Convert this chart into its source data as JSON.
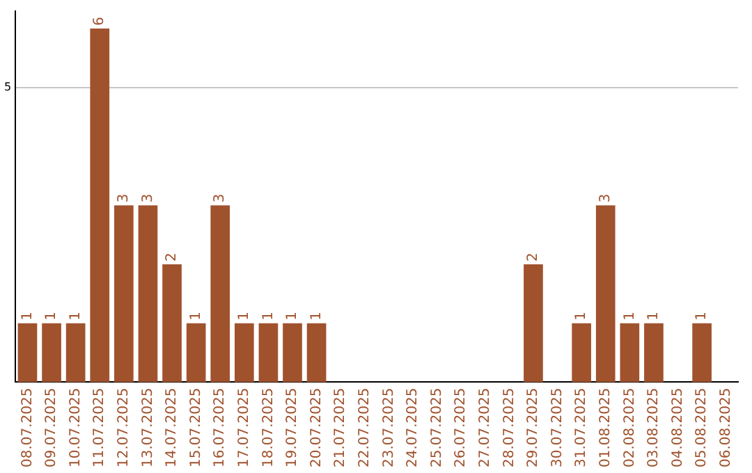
{
  "chart_data": {
    "type": "bar",
    "categories": [
      "08.07.2025",
      "09.07.2025",
      "10.07.2025",
      "11.07.2025",
      "12.07.2025",
      "13.07.2025",
      "14.07.2025",
      "15.07.2025",
      "16.07.2025",
      "17.07.2025",
      "18.07.2025",
      "19.07.2025",
      "20.07.2025",
      "21.07.2025",
      "22.07.2025",
      "23.07.2025",
      "24.07.2025",
      "25.07.2025",
      "26.07.2025",
      "27.07.2025",
      "28.07.2025",
      "29.07.2025",
      "30.07.2025",
      "31.07.2025",
      "01.08.2025",
      "02.08.2025",
      "03.08.2025",
      "04.08.2025",
      "05.08.2025",
      "06.08.2025"
    ],
    "values": [
      1,
      1,
      1,
      6,
      3,
      3,
      2,
      1,
      3,
      1,
      1,
      1,
      1,
      0,
      0,
      0,
      0,
      0,
      0,
      0,
      0,
      2,
      0,
      1,
      3,
      1,
      1,
      0,
      1,
      0
    ],
    "value_labels": [
      "1",
      "1",
      "1",
      "6",
      "3",
      "3",
      "2",
      "1",
      "3",
      "1",
      "1",
      "1",
      "1",
      null,
      null,
      null,
      null,
      null,
      null,
      null,
      null,
      "2",
      null,
      "1",
      "3",
      "1",
      "1",
      null,
      "1",
      null
    ],
    "color": "#a0522d",
    "ylim": [
      0,
      6.3
    ],
    "yticks": [
      5
    ],
    "grid": "y",
    "legend": false
  }
}
